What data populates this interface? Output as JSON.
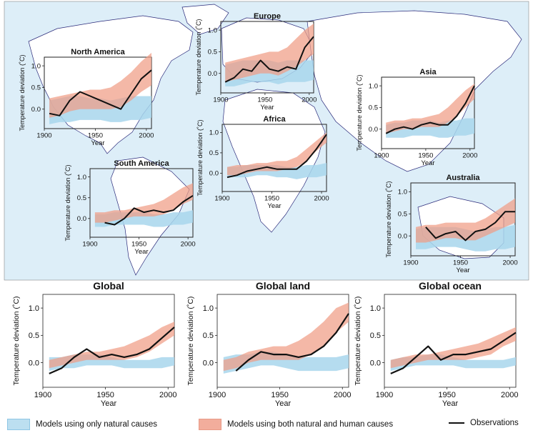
{
  "colors": {
    "natural_band": "#a8d6ec",
    "both_band": "#f09c85",
    "observations": "#111111",
    "map_land": "#ffffff",
    "map_ocean": "#ddeef8",
    "map_coast": "#2a2a7a"
  },
  "legend": {
    "natural": "Models using only natural causes",
    "both": "Models using both natural and human causes",
    "observations": "Observations"
  },
  "chart_data": [
    {
      "type": "line",
      "title": "Europe",
      "xlabel": "Year",
      "ylabel": "Temperature deviation (˚C)",
      "xlim": [
        1900,
        2005
      ],
      "ylim": [
        -0.45,
        1.2
      ],
      "xticks": [
        "1900",
        "1950",
        "2000"
      ],
      "yticks": [
        "0.0",
        "0.5",
        "1.0"
      ],
      "x": [
        1905,
        1915,
        1925,
        1935,
        1945,
        1955,
        1965,
        1975,
        1985,
        1995,
        2005
      ],
      "observations": [
        -0.2,
        -0.1,
        0.1,
        0.05,
        0.3,
        0.1,
        0.05,
        0.15,
        0.1,
        0.6,
        0.85
      ],
      "natural_low": [
        -0.3,
        -0.3,
        -0.25,
        -0.2,
        -0.2,
        -0.2,
        -0.25,
        -0.2,
        -0.2,
        -0.2,
        -0.15
      ],
      "natural_high": [
        0.2,
        0.25,
        0.3,
        0.3,
        0.3,
        0.3,
        0.25,
        0.3,
        0.3,
        0.3,
        0.3
      ],
      "both_low": [
        -0.2,
        -0.15,
        -0.1,
        -0.05,
        0.0,
        0.0,
        -0.05,
        0.05,
        0.15,
        0.3,
        0.45
      ],
      "both_high": [
        0.25,
        0.3,
        0.35,
        0.4,
        0.45,
        0.5,
        0.5,
        0.6,
        0.8,
        1.0,
        1.15
      ]
    },
    {
      "type": "line",
      "title": "North America",
      "xlabel": "Year",
      "ylabel": "Temperature deviation (˚C)",
      "xlim": [
        1900,
        2005
      ],
      "ylim": [
        -0.45,
        1.2
      ],
      "xticks": [
        "1900",
        "1950",
        "2000"
      ],
      "yticks": [
        "0.0",
        "0.5",
        "1.0"
      ],
      "x": [
        1905,
        1915,
        1925,
        1935,
        1945,
        1955,
        1965,
        1975,
        1985,
        1995,
        2005
      ],
      "observations": [
        -0.1,
        -0.15,
        0.2,
        0.4,
        0.3,
        0.2,
        0.1,
        0.0,
        0.35,
        0.7,
        0.9
      ],
      "natural_low": [
        -0.35,
        -0.3,
        -0.3,
        -0.25,
        -0.25,
        -0.25,
        -0.3,
        -0.3,
        -0.25,
        -0.25,
        -0.2
      ],
      "natural_high": [
        0.2,
        0.25,
        0.3,
        0.3,
        0.25,
        0.25,
        0.2,
        0.25,
        0.3,
        0.3,
        0.3
      ],
      "both_low": [
        -0.2,
        -0.15,
        -0.05,
        0.0,
        0.0,
        0.0,
        0.0,
        0.05,
        0.2,
        0.4,
        0.55
      ],
      "both_high": [
        0.25,
        0.3,
        0.35,
        0.4,
        0.45,
        0.45,
        0.5,
        0.65,
        0.85,
        1.1,
        1.3
      ]
    },
    {
      "type": "line",
      "title": "Asia",
      "xlabel": "Year",
      "ylabel": "Temperature deviation (˚C)",
      "xlim": [
        1900,
        2005
      ],
      "ylim": [
        -0.45,
        1.2
      ],
      "xticks": [
        "1900",
        "1950",
        "2000"
      ],
      "yticks": [
        "0.0",
        "0.5",
        "1.0"
      ],
      "x": [
        1905,
        1915,
        1925,
        1935,
        1945,
        1955,
        1965,
        1975,
        1985,
        1995,
        2005
      ],
      "observations": [
        -0.1,
        0.0,
        0.05,
        0.0,
        0.1,
        0.15,
        0.1,
        0.1,
        0.3,
        0.6,
        1.0
      ],
      "natural_low": [
        -0.2,
        -0.2,
        -0.2,
        -0.15,
        -0.15,
        -0.15,
        -0.2,
        -0.2,
        -0.15,
        -0.15,
        -0.1
      ],
      "natural_high": [
        0.1,
        0.15,
        0.15,
        0.2,
        0.2,
        0.2,
        0.15,
        0.2,
        0.2,
        0.25,
        0.25
      ],
      "both_low": [
        -0.1,
        -0.05,
        0.0,
        0.0,
        0.05,
        0.05,
        0.05,
        0.15,
        0.3,
        0.5,
        0.7
      ],
      "both_high": [
        0.15,
        0.2,
        0.2,
        0.25,
        0.25,
        0.3,
        0.35,
        0.5,
        0.7,
        0.9,
        1.05
      ]
    },
    {
      "type": "line",
      "title": "Africa",
      "xlabel": "Year",
      "ylabel": "Temperature deviation (˚C)",
      "xlim": [
        1900,
        2005
      ],
      "ylim": [
        -0.45,
        1.2
      ],
      "xticks": [
        "1900",
        "1950",
        "2000"
      ],
      "yticks": [
        "0.0",
        "0.5",
        "1.0"
      ],
      "x": [
        1905,
        1915,
        1925,
        1935,
        1945,
        1955,
        1965,
        1975,
        1985,
        1995,
        2005
      ],
      "observations": [
        -0.1,
        -0.05,
        0.05,
        0.1,
        0.15,
        0.1,
        0.1,
        0.1,
        0.3,
        0.6,
        0.95
      ],
      "natural_low": [
        -0.1,
        -0.1,
        -0.1,
        -0.05,
        -0.05,
        -0.1,
        -0.1,
        -0.15,
        -0.1,
        -0.1,
        -0.05
      ],
      "natural_high": [
        0.15,
        0.15,
        0.2,
        0.2,
        0.2,
        0.2,
        0.15,
        0.15,
        0.2,
        0.2,
        0.25
      ],
      "both_low": [
        -0.05,
        -0.05,
        0.0,
        0.05,
        0.05,
        0.05,
        0.1,
        0.15,
        0.3,
        0.55,
        0.75
      ],
      "both_high": [
        0.15,
        0.2,
        0.2,
        0.25,
        0.25,
        0.3,
        0.3,
        0.4,
        0.6,
        0.8,
        1.0
      ]
    },
    {
      "type": "line",
      "title": "South America",
      "xlabel": "Year",
      "ylabel": "Temperature deviation (˚C)",
      "xlim": [
        1900,
        2005
      ],
      "ylim": [
        -0.45,
        1.2
      ],
      "xticks": [
        "1900",
        "1950",
        "2000"
      ],
      "yticks": [
        "0.0",
        "0.5",
        "1.0"
      ],
      "x": [
        1905,
        1915,
        1925,
        1935,
        1945,
        1955,
        1965,
        1975,
        1985,
        1995,
        2005
      ],
      "observations": [
        null,
        -0.1,
        -0.15,
        0.0,
        0.25,
        0.15,
        0.2,
        0.15,
        0.2,
        0.4,
        0.55
      ],
      "natural_low": [
        -0.2,
        -0.2,
        -0.15,
        -0.15,
        -0.15,
        -0.15,
        -0.2,
        -0.2,
        -0.15,
        -0.15,
        -0.1
      ],
      "natural_high": [
        0.1,
        0.1,
        0.15,
        0.15,
        0.15,
        0.15,
        0.1,
        0.1,
        0.15,
        0.15,
        0.2
      ],
      "both_low": [
        -0.1,
        -0.1,
        -0.05,
        0.0,
        0.05,
        0.05,
        0.05,
        0.1,
        0.2,
        0.35,
        0.45
      ],
      "both_high": [
        0.15,
        0.15,
        0.2,
        0.2,
        0.25,
        0.3,
        0.35,
        0.45,
        0.6,
        0.75,
        0.85
      ]
    },
    {
      "type": "line",
      "title": "Australia",
      "xlabel": "Year",
      "ylabel": "Temperature deviation (˚C)",
      "xlim": [
        1900,
        2005
      ],
      "ylim": [
        -0.45,
        1.2
      ],
      "xticks": [
        "1900",
        "1950",
        "2000"
      ],
      "yticks": [
        "0.0",
        "0.5",
        "1.0"
      ],
      "x": [
        1905,
        1915,
        1925,
        1935,
        1945,
        1955,
        1965,
        1975,
        1985,
        1995,
        2005
      ],
      "observations": [
        null,
        0.2,
        -0.05,
        0.05,
        0.1,
        -0.1,
        0.1,
        0.15,
        0.3,
        0.55,
        0.55
      ],
      "natural_low": [
        -0.3,
        -0.3,
        -0.25,
        -0.25,
        -0.25,
        -0.3,
        -0.35,
        -0.35,
        -0.3,
        -0.3,
        -0.25
      ],
      "natural_high": [
        0.15,
        0.2,
        0.2,
        0.2,
        0.2,
        0.15,
        0.1,
        0.15,
        0.2,
        0.2,
        0.25
      ],
      "both_low": [
        -0.15,
        -0.15,
        -0.1,
        -0.05,
        -0.05,
        -0.1,
        -0.1,
        0.0,
        0.1,
        0.2,
        0.3
      ],
      "both_high": [
        0.2,
        0.25,
        0.25,
        0.3,
        0.3,
        0.3,
        0.3,
        0.4,
        0.55,
        0.7,
        0.85
      ]
    },
    {
      "type": "line",
      "title": "Global",
      "xlabel": "Year",
      "ylabel": "Temperature deviation (˚C)",
      "xlim": [
        1900,
        2005
      ],
      "ylim": [
        -0.45,
        1.25
      ],
      "xticks": [
        "1900",
        "1950",
        "2000"
      ],
      "yticks": [
        "0.0",
        "0.5",
        "1.0"
      ],
      "x": [
        1905,
        1915,
        1925,
        1935,
        1945,
        1955,
        1965,
        1975,
        1985,
        1995,
        2005
      ],
      "observations": [
        -0.2,
        -0.1,
        0.1,
        0.25,
        0.1,
        0.15,
        0.1,
        0.15,
        0.25,
        0.45,
        0.65
      ],
      "natural_low": [
        -0.15,
        -0.1,
        -0.1,
        -0.05,
        -0.05,
        -0.05,
        -0.1,
        -0.1,
        -0.1,
        -0.1,
        -0.05
      ],
      "natural_high": [
        0.1,
        0.1,
        0.15,
        0.15,
        0.15,
        0.1,
        0.05,
        0.05,
        0.05,
        0.1,
        0.1
      ],
      "both_low": [
        -0.1,
        -0.05,
        0.0,
        0.05,
        0.05,
        0.05,
        0.05,
        0.1,
        0.2,
        0.35,
        0.5
      ],
      "both_high": [
        0.05,
        0.1,
        0.15,
        0.2,
        0.2,
        0.25,
        0.3,
        0.4,
        0.5,
        0.65,
        0.75
      ]
    },
    {
      "type": "line",
      "title": "Global land",
      "xlabel": "Year",
      "ylabel": "Temperature deviation (˚C)",
      "xlim": [
        1900,
        2005
      ],
      "ylim": [
        -0.45,
        1.25
      ],
      "xticks": [
        "1900",
        "1950",
        "2000"
      ],
      "yticks": [
        "0.0",
        "0.5",
        "1.0"
      ],
      "x": [
        1905,
        1915,
        1925,
        1935,
        1945,
        1955,
        1965,
        1975,
        1985,
        1995,
        2005
      ],
      "observations": [
        null,
        -0.15,
        0.05,
        0.2,
        0.15,
        0.15,
        0.1,
        0.15,
        0.3,
        0.55,
        0.9
      ],
      "natural_low": [
        -0.2,
        -0.15,
        -0.1,
        -0.05,
        -0.05,
        -0.1,
        -0.15,
        -0.15,
        -0.15,
        -0.15,
        -0.1
      ],
      "natural_high": [
        0.1,
        0.15,
        0.15,
        0.2,
        0.2,
        0.15,
        0.1,
        0.1,
        0.1,
        0.1,
        0.15
      ],
      "both_low": [
        -0.15,
        -0.1,
        0.0,
        0.05,
        0.05,
        0.05,
        0.05,
        0.15,
        0.3,
        0.55,
        0.75
      ],
      "both_high": [
        0.05,
        0.1,
        0.2,
        0.25,
        0.3,
        0.3,
        0.4,
        0.55,
        0.75,
        1.0,
        1.1
      ]
    },
    {
      "type": "line",
      "title": "Global ocean",
      "xlabel": "Year",
      "ylabel": "Temperature deviation (˚C)",
      "xlim": [
        1900,
        2005
      ],
      "ylim": [
        -0.45,
        1.25
      ],
      "xticks": [
        "1900",
        "1950",
        "2000"
      ],
      "yticks": [
        "0.0",
        "0.5",
        "1.0"
      ],
      "x": [
        1905,
        1915,
        1925,
        1935,
        1945,
        1955,
        1965,
        1975,
        1985,
        1995,
        2005
      ],
      "observations": [
        -0.2,
        -0.1,
        0.1,
        0.3,
        0.05,
        0.15,
        0.15,
        0.2,
        0.25,
        0.4,
        0.55
      ],
      "natural_low": [
        -0.15,
        -0.1,
        -0.05,
        -0.05,
        -0.05,
        -0.05,
        -0.1,
        -0.1,
        -0.1,
        -0.1,
        -0.05
      ],
      "natural_high": [
        0.05,
        0.1,
        0.1,
        0.15,
        0.15,
        0.1,
        0.05,
        0.05,
        0.05,
        0.05,
        0.1
      ],
      "both_low": [
        -0.1,
        -0.05,
        0.0,
        0.05,
        0.05,
        0.05,
        0.05,
        0.1,
        0.15,
        0.3,
        0.4
      ],
      "both_high": [
        0.05,
        0.1,
        0.15,
        0.15,
        0.2,
        0.25,
        0.3,
        0.35,
        0.45,
        0.55,
        0.65
      ]
    }
  ]
}
